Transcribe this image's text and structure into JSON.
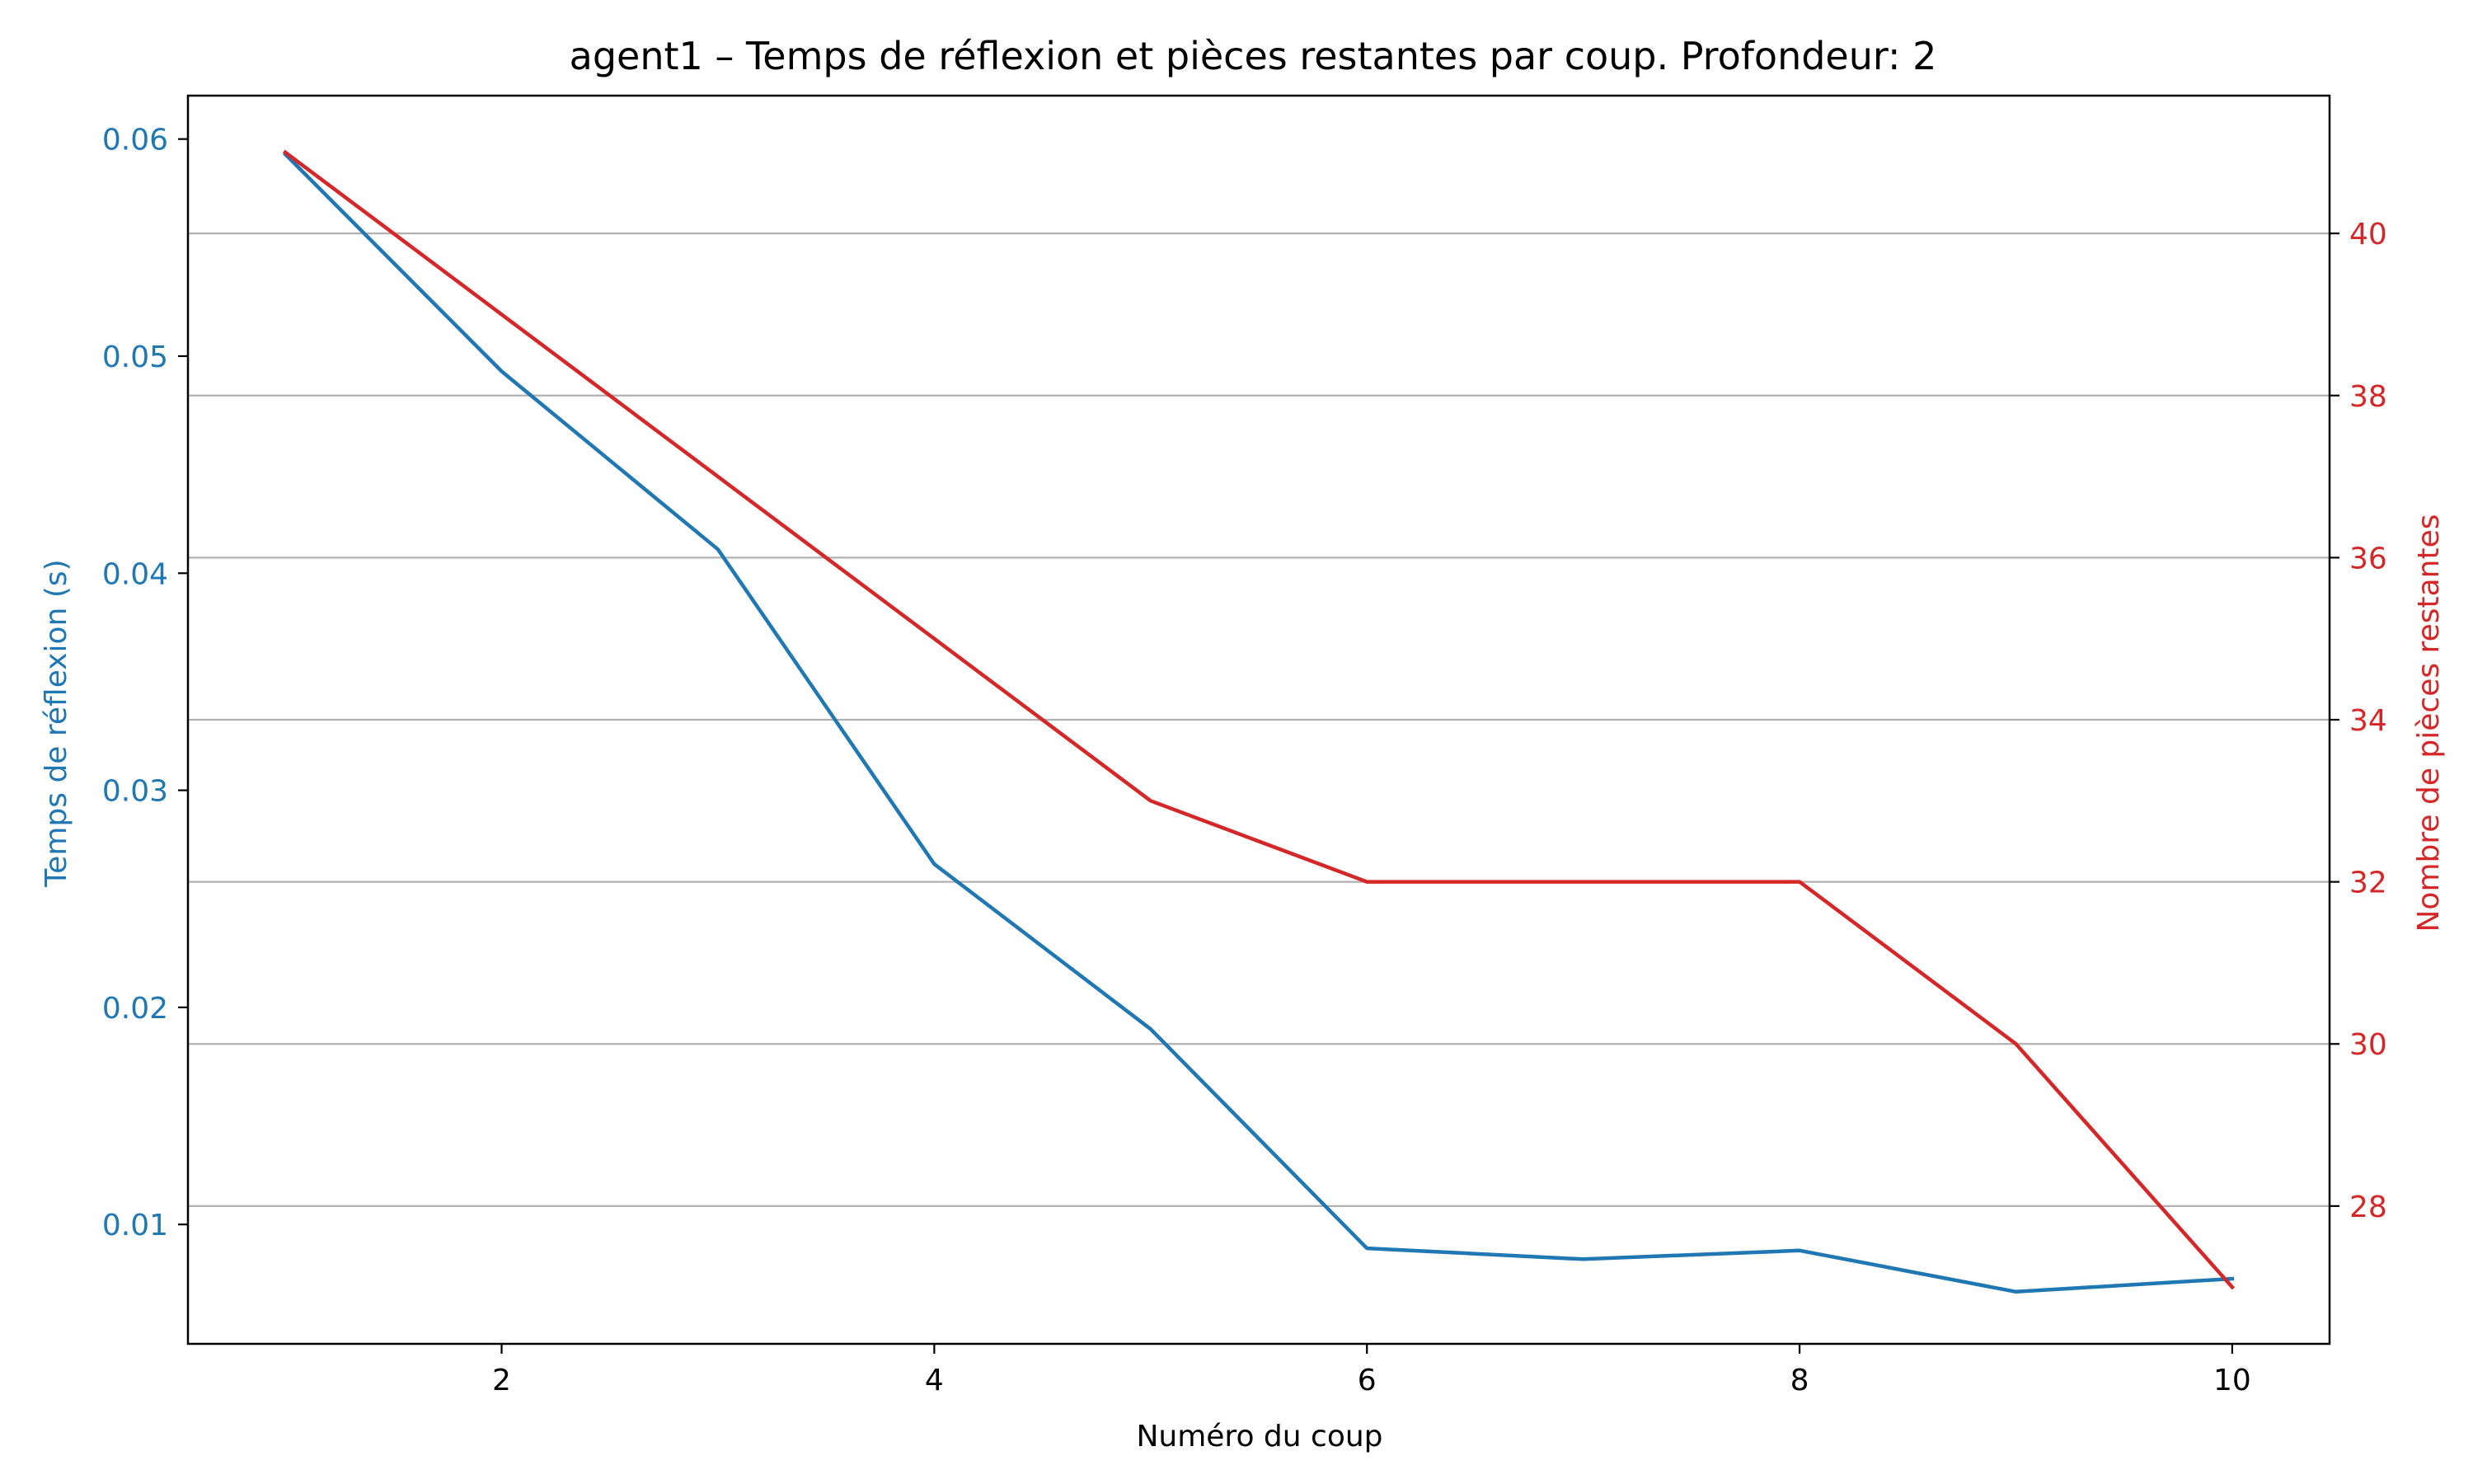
{
  "chart_data": {
    "type": "line",
    "title": "agent1 – Temps de réflexion et pièces restantes par coup. Profondeur: 2",
    "xlabel": "Numéro du coup",
    "ylabel_left": "Temps de réflexion (s)",
    "ylabel_right": "Nombre de pièces restantes",
    "x": [
      1,
      2,
      3,
      4,
      5,
      6,
      7,
      8,
      9,
      10
    ],
    "xticks": [
      "2",
      "4",
      "6",
      "8",
      "10"
    ],
    "xlim": [
      0.55,
      10.45
    ],
    "yticks_left": [
      "0.01",
      "0.02",
      "0.03",
      "0.04",
      "0.05",
      "0.06"
    ],
    "ylim_left": [
      0.0045,
      0.062
    ],
    "yticks_right": [
      "28",
      "30",
      "32",
      "34",
      "36",
      "38",
      "40"
    ],
    "ylim_right": [
      26.3,
      41.7
    ],
    "grid": "horizontal lines on right axis ticks",
    "colors": {
      "left": "#1f77b4",
      "right": "#d62728",
      "grid": "#b0b0b0",
      "axis": "#000000"
    },
    "series": [
      {
        "axis": "left",
        "color": "#1f77b4",
        "values": [
          0.0593,
          0.0493,
          0.0411,
          0.0266,
          0.019,
          0.0089,
          0.0084,
          0.0088,
          0.0069,
          0.0075
        ]
      },
      {
        "axis": "right",
        "color": "#d62728",
        "values": [
          41,
          39,
          37,
          35,
          33,
          32,
          32,
          32,
          30,
          27
        ]
      }
    ]
  }
}
